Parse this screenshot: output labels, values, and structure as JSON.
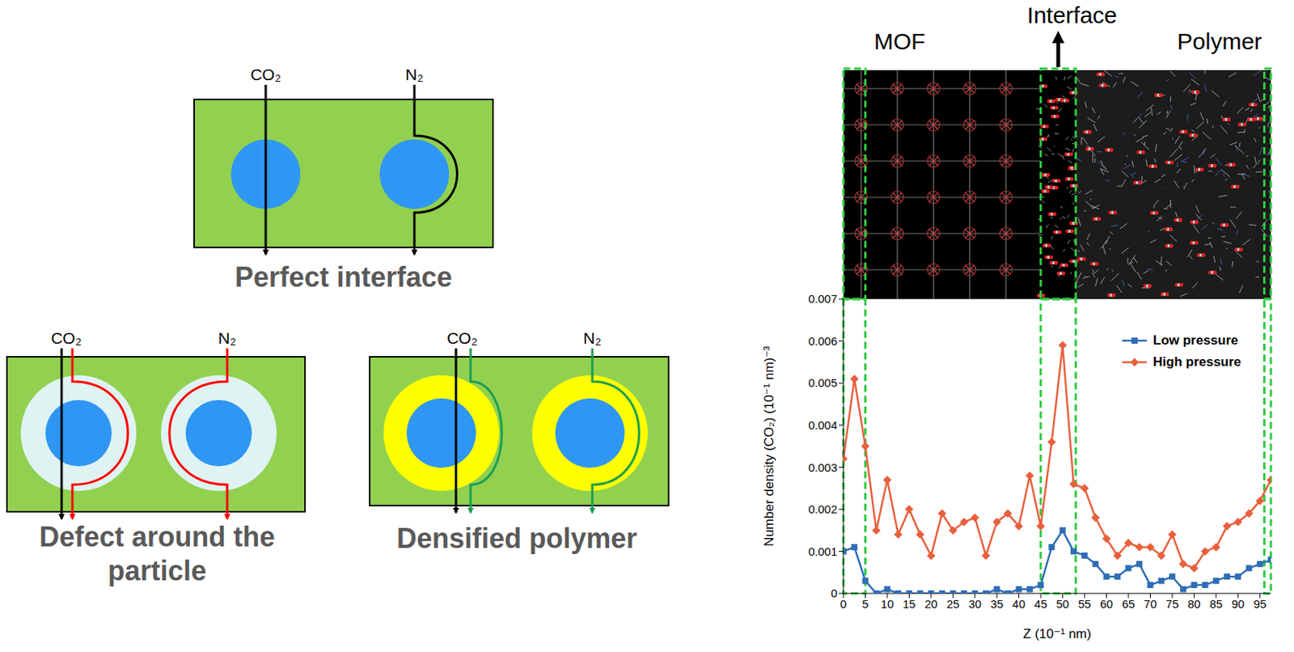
{
  "schematic": {
    "panels": [
      {
        "title": "Perfect interface",
        "gases": [
          "CO₂",
          "N₂"
        ]
      },
      {
        "title": "Defect around the particle",
        "gases": [
          "CO₂",
          "N₂"
        ]
      },
      {
        "title": "Densified polymer",
        "gases": [
          "CO₂",
          "N₂"
        ]
      }
    ]
  },
  "simulation_snapshot": {
    "labels": {
      "left": "MOF",
      "top": "Interface",
      "right": "Polymer"
    }
  },
  "chart_data": {
    "type": "line",
    "x_label": "Z (10⁻¹ nm)",
    "y_label": "Number density (CO₂) (10⁻¹ nm)⁻³",
    "x": [
      0,
      2.5,
      5,
      7.5,
      10,
      12.5,
      15,
      17.5,
      20,
      22.5,
      25,
      27.5,
      30,
      32.5,
      35,
      37.5,
      40,
      42.5,
      45,
      47.5,
      50,
      52.5,
      55,
      57.5,
      60,
      62.5,
      65,
      67.5,
      70,
      72.5,
      75,
      77.5,
      80,
      82.5,
      85,
      87.5,
      90,
      92.5,
      95,
      97.5
    ],
    "xlim": [
      0,
      97.5
    ],
    "xticks": [
      0,
      5,
      10,
      15,
      20,
      25,
      30,
      35,
      40,
      45,
      50,
      55,
      60,
      65,
      70,
      75,
      80,
      85,
      90,
      95
    ],
    "ylim": [
      0,
      0.007
    ],
    "yticks": [
      0,
      0.001,
      0.002,
      0.003,
      0.004,
      0.005,
      0.006,
      0.007
    ],
    "legend": "top-right",
    "highlight_ranges": [
      [
        0,
        5
      ],
      [
        45,
        53
      ],
      [
        96,
        97.5
      ]
    ],
    "series": [
      {
        "name": "Low pressure",
        "color": "#2f6db5",
        "marker": "square",
        "values": [
          0.001,
          0.0011,
          0.0003,
          0,
          0.0001,
          0,
          0,
          0,
          0,
          0,
          0,
          0,
          0,
          0,
          0.0001,
          0,
          0.0001,
          0.0001,
          0.0002,
          0.0011,
          0.0015,
          0.001,
          0.0009,
          0.0007,
          0.0004,
          0.0004,
          0.0006,
          0.0007,
          0.0002,
          0.0003,
          0.0004,
          0.0001,
          0.0002,
          0.0002,
          0.0003,
          0.0004,
          0.0004,
          0.0006,
          0.0007,
          0.0008
        ]
      },
      {
        "name": "High pressure",
        "color": "#e8603c",
        "marker": "diamond",
        "values": [
          0.0032,
          0.0051,
          0.0035,
          0.0015,
          0.0027,
          0.0014,
          0.002,
          0.0014,
          0.0009,
          0.0019,
          0.0015,
          0.0017,
          0.0018,
          0.0009,
          0.0017,
          0.0019,
          0.0016,
          0.0028,
          0.0016,
          0.0036,
          0.0059,
          0.0026,
          0.0025,
          0.0018,
          0.0013,
          0.0009,
          0.0012,
          0.0011,
          0.0011,
          0.0009,
          0.0014,
          0.0007,
          0.0006,
          0.001,
          0.0011,
          0.0016,
          0.0017,
          0.0019,
          0.0022,
          0.0027
        ]
      }
    ]
  }
}
